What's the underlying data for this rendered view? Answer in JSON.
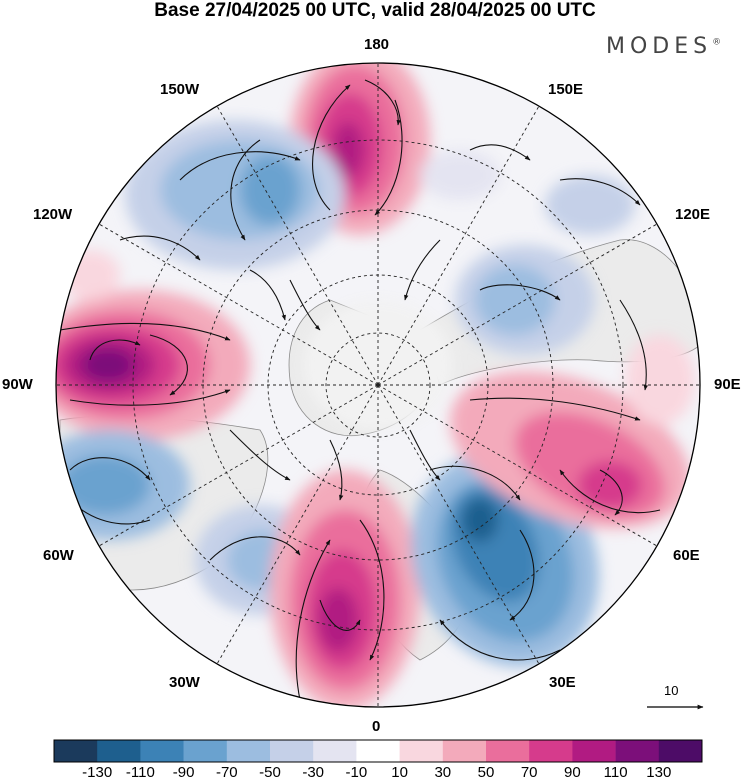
{
  "title": "Base 27/04/2025 00 UTC, valid 28/04/2025 00 UTC",
  "brand": {
    "name": "MODES",
    "mark": "®"
  },
  "longitude_labels": {
    "lon_180": "180",
    "lon_150w": "150W",
    "lon_150e": "150E",
    "lon_120w": "120W",
    "lon_120e": "120E",
    "lon_90w": "90W",
    "lon_90e": "90E",
    "lon_60w": "60W",
    "lon_60e": "60E",
    "lon_30w": "30W",
    "lon_30e": "30E",
    "lon_0": "0"
  },
  "wind_reference": {
    "value": "10"
  },
  "colorbar": {
    "ticks": [
      "-130",
      "-110",
      "-90",
      "-70",
      "-50",
      "-30",
      "-10",
      "10",
      "30",
      "50",
      "70",
      "90",
      "110",
      "130"
    ],
    "colors": [
      "#1b3a5c",
      "#1e5f8e",
      "#3c82b6",
      "#6aa2cf",
      "#9cbde0",
      "#c5d0e8",
      "#e4e4f1",
      "#ffffff",
      "#f9d7df",
      "#f3aabb",
      "#ea6e9c",
      "#d63b8c",
      "#b11b82",
      "#7c0f7a",
      "#4d0c67"
    ]
  },
  "map_style": {
    "land_color": "#e9e9e9",
    "coast_color": "#777777",
    "vector_color": "#111111"
  }
}
